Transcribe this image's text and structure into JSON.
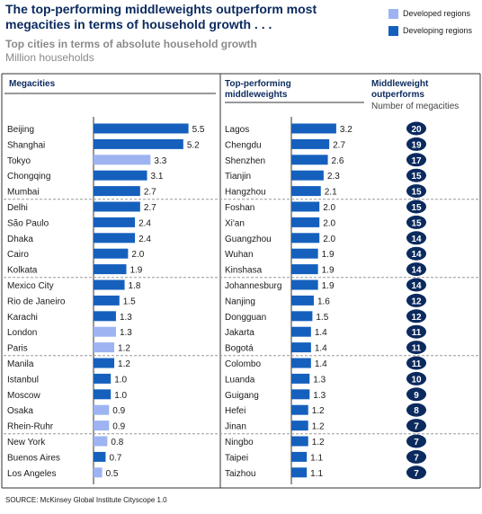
{
  "header": {
    "title": "The top-performing middleweights outperform most megacities in terms of household growth . . .",
    "subtitle": "Top cities in terms of absolute household growth",
    "units": "Million households"
  },
  "legend": {
    "developed_label": "Developed regions",
    "developing_label": "Developing regions"
  },
  "colors": {
    "developed": "#9db3f2",
    "developing": "#1560bd",
    "badge": "#0b2a5e"
  },
  "columns": {
    "megacities_header": "Megacities",
    "middleweights_header": "Top-performing middleweights",
    "outperforms_header": "Middleweight outperforms",
    "outperforms_note": "Number of megacities"
  },
  "chart_data": {
    "type": "bar",
    "megacities": {
      "categories": [
        "Beijing",
        "Shanghai",
        "Tokyo",
        "Chongqing",
        "Mumbai",
        "Delhi",
        "São Paulo",
        "Dhaka",
        "Cairo",
        "Kolkata",
        "Mexico City",
        "Rio de Janeiro",
        "Karachi",
        "London",
        "Paris",
        "Manila",
        "Istanbul",
        "Moscow",
        "Osaka",
        "Rhein-Ruhr",
        "New York",
        "Buenos Aires",
        "Los Angeles"
      ],
      "values": [
        5.5,
        5.2,
        3.3,
        3.1,
        2.7,
        2.7,
        2.4,
        2.4,
        2.0,
        1.9,
        1.8,
        1.5,
        1.3,
        1.3,
        1.2,
        1.2,
        1.0,
        1.0,
        0.9,
        0.9,
        0.8,
        0.7,
        0.5
      ],
      "regions": [
        "developing",
        "developing",
        "developed",
        "developing",
        "developing",
        "developing",
        "developing",
        "developing",
        "developing",
        "developing",
        "developing",
        "developing",
        "developing",
        "developed",
        "developed",
        "developing",
        "developing",
        "developing",
        "developed",
        "developed",
        "developed",
        "developing",
        "developed"
      ]
    },
    "middleweights": {
      "categories": [
        "Lagos",
        "Chengdu",
        "Shenzhen",
        "Tianjin",
        "Hangzhou",
        "Foshan",
        "Xi'an",
        "Guangzhou",
        "Wuhan",
        "Kinshasa",
        "Johannesburg",
        "Nanjing",
        "Dongguan",
        "Jakarta",
        "Bogotá",
        "Colombo",
        "Luanda",
        "Guigang",
        "Hefei",
        "Jinan",
        "Ningbo",
        "Taipei",
        "Taizhou"
      ],
      "values": [
        3.2,
        2.7,
        2.6,
        2.3,
        2.1,
        2.0,
        2.0,
        2.0,
        1.9,
        1.9,
        1.9,
        1.6,
        1.5,
        1.4,
        1.4,
        1.4,
        1.3,
        1.3,
        1.2,
        1.2,
        1.2,
        1.1,
        1.1
      ],
      "regions": [
        "developing",
        "developing",
        "developing",
        "developing",
        "developing",
        "developing",
        "developing",
        "developing",
        "developing",
        "developing",
        "developing",
        "developing",
        "developing",
        "developing",
        "developing",
        "developing",
        "developing",
        "developing",
        "developing",
        "developing",
        "developing",
        "developing",
        "developing"
      ]
    },
    "outperforms": [
      20,
      19,
      17,
      15,
      15,
      15,
      15,
      14,
      14,
      14,
      14,
      12,
      12,
      11,
      11,
      11,
      10,
      9,
      8,
      7,
      7,
      7,
      7
    ]
  },
  "footer": "SOURCE: McKinsey Global Institute Cityscope 1.0"
}
